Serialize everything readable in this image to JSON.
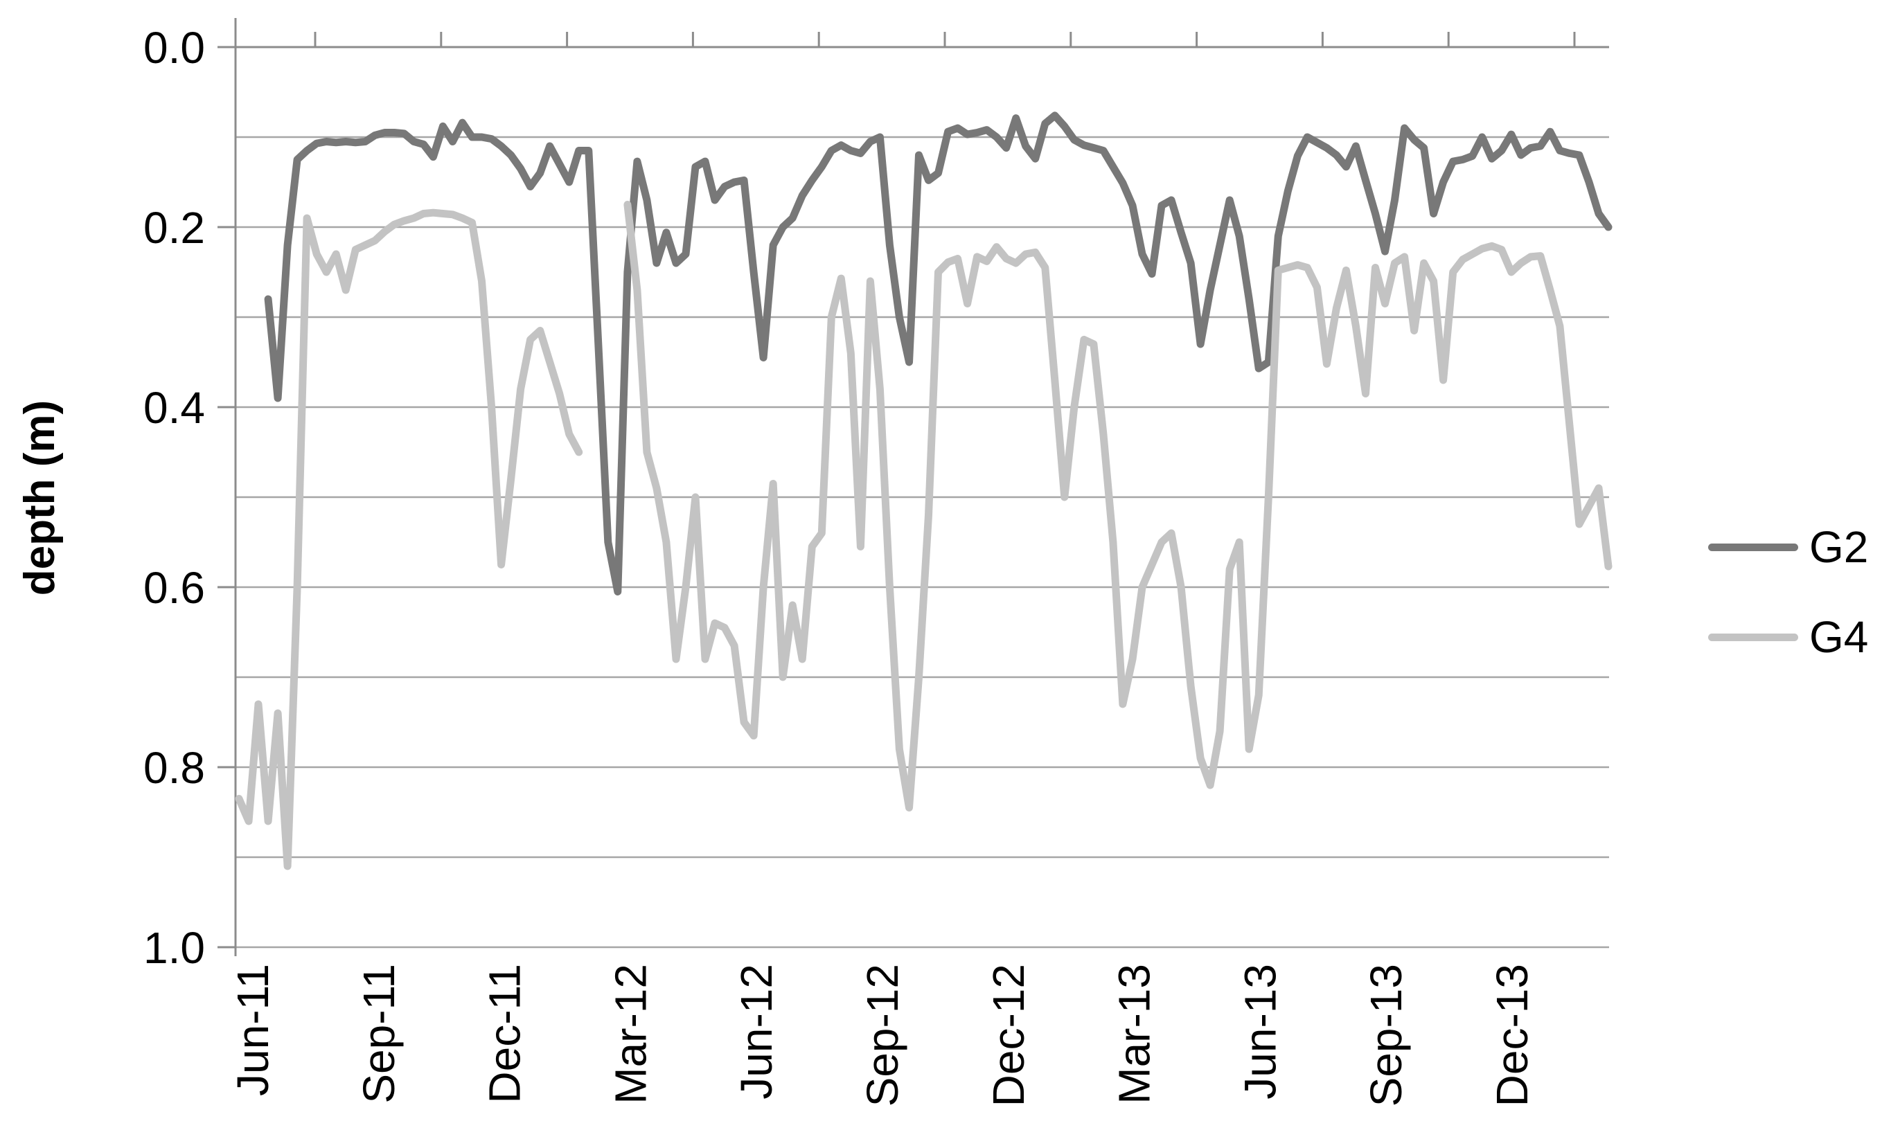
{
  "chart_data": {
    "type": "line",
    "title": "",
    "y_axis": {
      "title": "depth (m)",
      "min": 0.0,
      "max": 1.0,
      "inverted": true,
      "major_tick_labels": [
        "0.0",
        "0.2",
        "0.4",
        "0.6",
        "0.8",
        "1.0"
      ],
      "major_unit": 0.2,
      "minor_gridline_unit": 0.1,
      "grid": true
    },
    "x_axis": {
      "tick_labels": [
        "Jun-11",
        "Sep-11",
        "Dec-11",
        "Mar-12",
        "Jun-12",
        "Sep-12",
        "Dec-12",
        "Mar-13",
        "Jun-13",
        "Sep-13",
        "Dec-13"
      ],
      "label_rotation_deg": -90,
      "start_date": "2011-05-22",
      "step_days": 7,
      "note": "weekly depth observations; G4 has a gap Jan-Feb 2012, G2 starts 3 weeks after G4"
    },
    "legend": {
      "position": "right",
      "entries": [
        "G2",
        "G4"
      ]
    },
    "series": [
      {
        "name": "G2",
        "color": "#787878",
        "values": [
          null,
          null,
          null,
          0.28,
          0.39,
          0.22,
          0.125,
          0.115,
          0.107,
          0.105,
          0.106,
          0.105,
          0.106,
          0.105,
          0.098,
          0.095,
          0.095,
          0.096,
          0.105,
          0.108,
          0.122,
          0.088,
          0.105,
          0.084,
          0.1,
          0.1,
          0.102,
          0.11,
          0.12,
          0.135,
          0.155,
          0.14,
          0.11,
          0.13,
          0.15,
          0.115,
          0.115,
          0.33,
          0.55,
          0.605,
          0.25,
          0.127,
          0.17,
          0.24,
          0.206,
          0.24,
          0.23,
          0.133,
          0.127,
          0.17,
          0.155,
          0.15,
          0.148,
          0.25,
          0.345,
          0.22,
          0.2,
          0.19,
          0.165,
          0.148,
          0.133,
          0.115,
          0.109,
          0.115,
          0.118,
          0.105,
          0.1,
          0.22,
          0.3,
          0.35,
          0.12,
          0.148,
          0.14,
          0.094,
          0.09,
          0.097,
          0.095,
          0.092,
          0.1,
          0.112,
          0.079,
          0.11,
          0.124,
          0.085,
          0.076,
          0.088,
          0.103,
          0.109,
          0.112,
          0.115,
          0.133,
          0.151,
          0.176,
          0.23,
          0.252,
          0.176,
          0.17,
          0.206,
          0.24,
          0.33,
          0.27,
          0.22,
          0.17,
          0.21,
          0.28,
          0.357,
          0.35,
          0.21,
          0.16,
          0.121,
          0.1,
          0.106,
          0.112,
          0.12,
          0.133,
          0.11,
          0.148,
          0.185,
          0.227,
          0.17,
          0.09,
          0.103,
          0.112,
          0.185,
          0.15,
          0.127,
          0.125,
          0.121,
          0.1,
          0.124,
          0.115,
          0.097,
          0.12,
          0.112,
          0.11,
          0.094,
          0.115,
          0.118,
          0.12,
          0.15,
          0.185,
          0.2
        ]
      },
      {
        "name": "G4",
        "color": "#c3c3c3",
        "values": [
          0.835,
          0.86,
          0.73,
          0.86,
          0.74,
          0.91,
          0.6,
          0.19,
          0.23,
          0.25,
          0.23,
          0.27,
          0.225,
          0.22,
          0.215,
          0.205,
          0.197,
          0.193,
          0.19,
          0.185,
          0.184,
          0.185,
          0.186,
          0.19,
          0.195,
          0.26,
          0.4,
          0.575,
          0.48,
          0.38,
          0.325,
          0.315,
          0.35,
          0.385,
          0.43,
          0.45,
          null,
          null,
          null,
          null,
          0.175,
          0.27,
          0.45,
          0.49,
          0.55,
          0.68,
          0.6,
          0.5,
          0.68,
          0.64,
          0.645,
          0.665,
          0.75,
          0.765,
          0.6,
          0.485,
          0.7,
          0.62,
          0.68,
          0.555,
          0.54,
          0.3,
          0.257,
          0.34,
          0.555,
          0.26,
          0.38,
          0.6,
          0.78,
          0.845,
          0.7,
          0.52,
          0.25,
          0.239,
          0.235,
          0.285,
          0.233,
          0.238,
          0.222,
          0.235,
          0.24,
          0.23,
          0.228,
          0.245,
          0.37,
          0.5,
          0.4,
          0.325,
          0.33,
          0.43,
          0.55,
          0.73,
          0.68,
          0.6,
          0.575,
          0.55,
          0.54,
          0.6,
          0.71,
          0.79,
          0.82,
          0.76,
          0.58,
          0.55,
          0.78,
          0.72,
          0.5,
          0.248,
          0.245,
          0.242,
          0.245,
          0.267,
          0.352,
          0.29,
          0.248,
          0.31,
          0.385,
          0.245,
          0.285,
          0.24,
          0.233,
          0.315,
          0.24,
          0.26,
          0.37,
          0.25,
          0.236,
          0.23,
          0.224,
          0.221,
          0.225,
          0.25,
          0.24,
          0.233,
          0.232,
          0.27,
          0.31,
          0.42,
          0.53,
          0.51,
          0.49,
          0.577
        ]
      }
    ],
    "style_colors": {
      "gridline": "#a6a6a6",
      "axis": "#8c8c8c",
      "tick_text": "#000000",
      "background": "#ffffff"
    }
  }
}
